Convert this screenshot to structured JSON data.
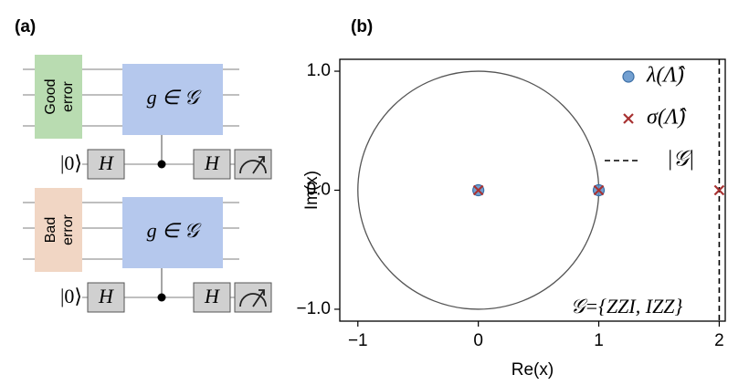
{
  "panel_a": {
    "label": "(a)",
    "circuits": [
      {
        "error": [
          "Good",
          "error"
        ],
        "error_color": "#b9dcb1",
        "gate": "g ∈ 𝒢",
        "ket": "|0⟩",
        "hadamards": [
          "H",
          "H"
        ]
      },
      {
        "error": [
          "Bad",
          "error"
        ],
        "error_color": "#f1d6c4",
        "gate": "g ∈ 𝒢",
        "ket": "|0⟩",
        "hadamards": [
          "H",
          "H"
        ]
      }
    ]
  },
  "chart_data": {
    "type": "scatter",
    "panel_label": "(b)",
    "x_label": "Re(x)",
    "y_label": "Im(x)",
    "xlim": [
      -1.15,
      2.05
    ],
    "ylim": [
      -1.1,
      1.1
    ],
    "xticks": [
      {
        "value": -1,
        "label": "−1"
      },
      0,
      1,
      2
    ],
    "yticks": [
      {
        "value": -1,
        "label": "−1.0"
      },
      {
        "value": 0,
        "label": "0.0"
      },
      {
        "value": 1,
        "label": "1.0"
      }
    ],
    "unit_circle": true,
    "legend": "upper right",
    "series": [
      {
        "name": "λ(Λ̂)",
        "color": "#5b8fc9",
        "marker": "o",
        "x": [
          0,
          1
        ],
        "values": [
          0,
          0
        ]
      },
      {
        "name": "σ(Λ̂)",
        "color": "#a83232",
        "marker": "x",
        "x": [
          0,
          1,
          2
        ],
        "values": [
          0,
          0,
          0
        ]
      }
    ],
    "vlines": [
      {
        "name": "|𝒢|",
        "x": 2,
        "color": "#000000"
      }
    ],
    "annotation": "𝒢={ZZI, IZZ}"
  }
}
